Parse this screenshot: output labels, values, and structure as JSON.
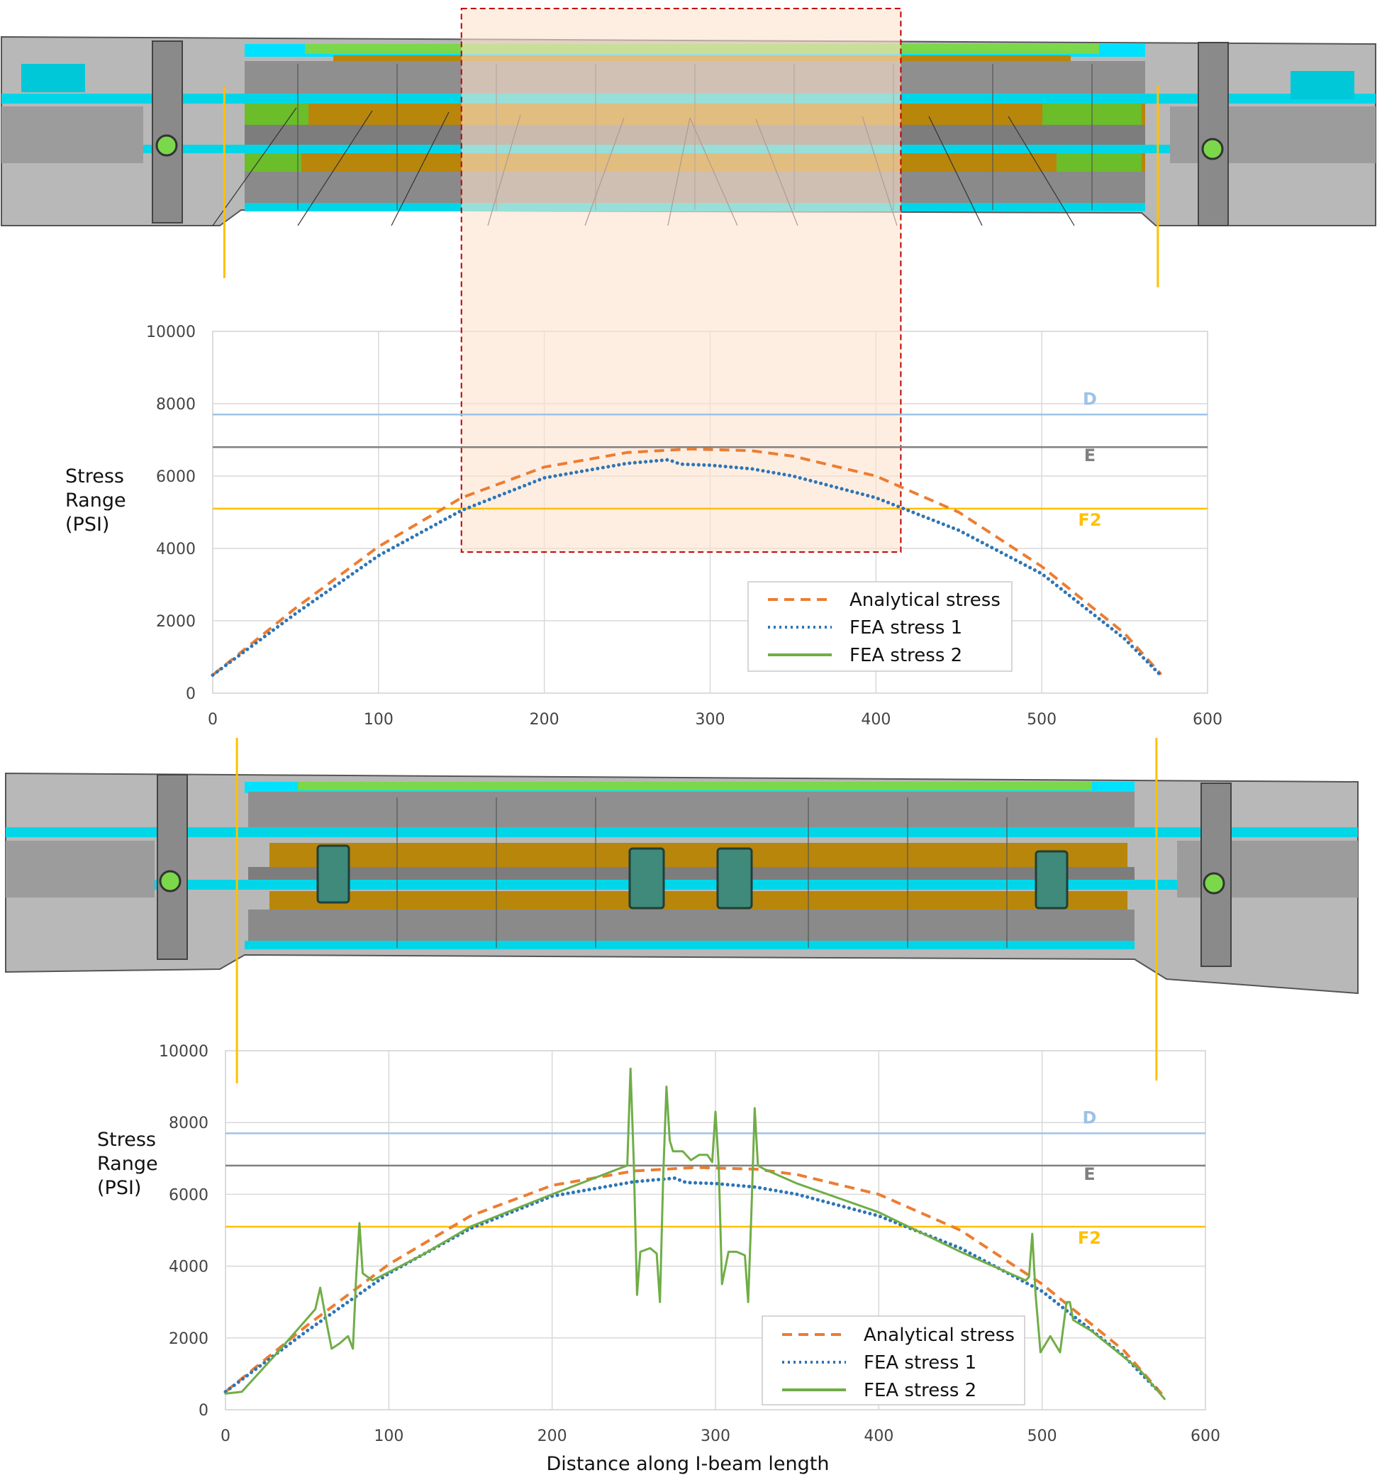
{
  "chart_data": [
    {
      "type": "line",
      "xlim": [
        0,
        600
      ],
      "ylim": [
        0,
        10000
      ],
      "x_ticks": [
        "0",
        "100",
        "200",
        "300",
        "400",
        "500",
        "600"
      ],
      "y_ticks": [
        "0",
        "2000",
        "4000",
        "6000",
        "8000",
        "10000"
      ],
      "ylabel": [
        "Stress",
        "Range",
        "(PSI)"
      ],
      "xlabel": "",
      "grid": true,
      "legend_position": "bottom-right",
      "reference_lines": [
        {
          "label": "D",
          "value": 7700,
          "color": "#9dc3e6"
        },
        {
          "label": "E",
          "value": 6800,
          "color": "#808080"
        },
        {
          "label": "F2",
          "value": 5100,
          "color": "#ffc000"
        }
      ],
      "series": [
        {
          "name": "Analytical stress",
          "color": "#ed7d31",
          "style": "dashed",
          "x": [
            0,
            50,
            100,
            150,
            200,
            250,
            288,
            325,
            350,
            400,
            450,
            500,
            550,
            572
          ],
          "y": [
            500,
            2350,
            4050,
            5400,
            6250,
            6650,
            6750,
            6700,
            6550,
            6000,
            5000,
            3500,
            1650,
            520
          ]
        },
        {
          "name": "FEA stress 1",
          "color": "#2e75b6",
          "style": "dotted",
          "x": [
            0,
            50,
            100,
            150,
            200,
            250,
            275,
            282,
            300,
            325,
            350,
            400,
            450,
            500,
            550,
            572
          ],
          "y": [
            500,
            2200,
            3800,
            5050,
            5950,
            6350,
            6450,
            6330,
            6300,
            6200,
            6000,
            5400,
            4500,
            3300,
            1500,
            480
          ]
        },
        {
          "name": "FEA stress 2",
          "color": "#70ad47",
          "style": "solid",
          "x": [],
          "y": []
        }
      ]
    },
    {
      "type": "line",
      "xlim": [
        0,
        600
      ],
      "ylim": [
        0,
        10000
      ],
      "x_ticks": [
        "0",
        "100",
        "200",
        "300",
        "400",
        "500",
        "600"
      ],
      "y_ticks": [
        "0",
        "2000",
        "4000",
        "6000",
        "8000",
        "10000"
      ],
      "ylabel": [
        "Stress",
        "Range",
        "(PSI)"
      ],
      "xlabel": "Distance along I-beam length",
      "grid": true,
      "legend_position": "bottom-right",
      "reference_lines": [
        {
          "label": "D",
          "value": 7700,
          "color": "#9dc3e6"
        },
        {
          "label": "E",
          "value": 6800,
          "color": "#808080"
        },
        {
          "label": "F2",
          "value": 5100,
          "color": "#ffc000"
        }
      ],
      "series": [
        {
          "name": "Analytical stress",
          "color": "#ed7d31",
          "style": "dashed",
          "x": [
            0,
            50,
            100,
            150,
            200,
            250,
            288,
            325,
            350,
            400,
            450,
            500,
            550,
            575
          ],
          "y": [
            500,
            2350,
            4050,
            5400,
            6250,
            6650,
            6750,
            6700,
            6550,
            6000,
            5000,
            3500,
            1650,
            350
          ]
        },
        {
          "name": "FEA stress 1",
          "color": "#2e75b6",
          "style": "dotted",
          "x": [
            0,
            50,
            100,
            150,
            200,
            250,
            275,
            282,
            300,
            325,
            350,
            400,
            450,
            500,
            550,
            572
          ],
          "y": [
            500,
            2200,
            3800,
            5050,
            5950,
            6350,
            6450,
            6330,
            6300,
            6200,
            6000,
            5400,
            4500,
            3300,
            1500,
            480
          ]
        },
        {
          "name": "FEA stress 2",
          "color": "#70ad47",
          "style": "solid",
          "x": [
            0,
            10,
            30,
            55,
            58,
            62,
            65,
            70,
            75,
            78,
            80,
            82,
            84,
            90,
            120,
            150,
            200,
            240,
            246,
            248,
            250,
            252,
            254,
            260,
            264,
            266,
            268,
            270,
            272,
            274,
            280,
            285,
            290,
            295,
            298,
            300,
            302,
            304,
            308,
            313,
            318,
            320,
            322,
            324,
            326,
            330,
            350,
            400,
            450,
            490,
            492,
            494,
            496,
            499,
            505,
            511,
            515,
            517,
            519,
            530,
            560,
            575
          ],
          "y": [
            450,
            500,
            1500,
            2800,
            3400,
            2400,
            1700,
            1850,
            2050,
            1700,
            3700,
            5200,
            3800,
            3600,
            4300,
            5100,
            6000,
            6700,
            6800,
            9500,
            6900,
            3200,
            4400,
            4500,
            4350,
            3000,
            6500,
            9000,
            7500,
            7200,
            7200,
            6950,
            7100,
            7100,
            6900,
            8300,
            6800,
            3500,
            4400,
            4400,
            4300,
            3000,
            5500,
            8400,
            6800,
            6700,
            6300,
            5500,
            4400,
            3600,
            3700,
            4900,
            3200,
            1600,
            2050,
            1600,
            3000,
            3000,
            2500,
            2200,
            1100,
            300
          ]
        }
      ]
    }
  ],
  "highlight": {
    "x_from": 150,
    "x_to": 415,
    "y_bottom": 3900
  },
  "fea_markers": {
    "x_left": 7,
    "x_right": 570
  }
}
